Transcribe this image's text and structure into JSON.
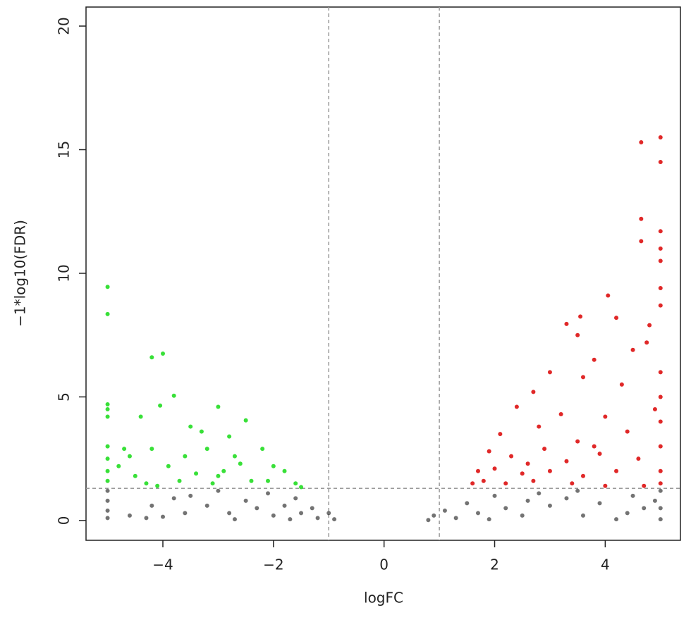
{
  "chart_data": {
    "type": "scatter",
    "xlabel": "logFC",
    "ylabel": "−1*log10(FDR)",
    "xlim": [
      -5.39,
      5.36
    ],
    "ylim": [
      -0.8,
      20.77
    ],
    "xticks": [
      {
        "value": -4,
        "label": "−4"
      },
      {
        "value": -2,
        "label": "−2"
      },
      0,
      2,
      4
    ],
    "yticks": [
      0,
      5,
      10,
      15,
      20
    ],
    "vlines": [
      -1,
      1
    ],
    "hlines": [
      1.3
    ],
    "series": [
      {
        "color": "#000000",
        "x": [
          -5,
          -5,
          -5,
          -5,
          -4.6,
          -4.3,
          -4.0,
          -3.8,
          -3.5,
          -3.2,
          -3,
          -2.8,
          -2.5,
          -2.3,
          -2.1,
          -2,
          -1.8,
          -1.6,
          -1.5,
          -1.3,
          -1.2,
          -1.0,
          -0.9,
          -4.2,
          -3.6,
          -2.7,
          -1.7,
          0.8,
          0.9,
          1.1,
          1.3,
          1.5,
          1.7,
          2,
          2.2,
          2.5,
          2.8,
          3.0,
          3.3,
          3.6,
          3.9,
          4.2,
          4.4,
          4.7,
          4.9,
          5,
          5,
          5,
          2.6,
          1.9,
          3.5,
          4.5
        ],
        "values": [
          1.2,
          0.8,
          0.4,
          0.1,
          0.2,
          0.1,
          0.15,
          0.9,
          1.0,
          0.6,
          1.2,
          0.3,
          0.8,
          0.5,
          1.1,
          0.2,
          0.6,
          0.9,
          0.3,
          0.5,
          0.1,
          0.3,
          0.05,
          0.6,
          0.3,
          0.05,
          0.05,
          0.02,
          0.2,
          0.4,
          0.1,
          0.7,
          0.3,
          1.0,
          0.5,
          0.2,
          1.1,
          0.6,
          0.9,
          0.2,
          0.7,
          0.05,
          0.3,
          0.5,
          0.8,
          1.2,
          0.5,
          0.05,
          0.8,
          0.05,
          1.2,
          1.0
        ]
      },
      {
        "color": "#22dd22",
        "x": [
          -5,
          -5,
          -5,
          -5,
          -5,
          -5,
          -5,
          -5,
          -5,
          -4.2,
          -4,
          -3.8,
          -4.05,
          -3,
          -2.5,
          -4.4,
          -3.5,
          -3.3,
          -2.8,
          -4.2,
          -3.6,
          -3.2,
          -2.2,
          -2.6,
          -3.9,
          -4.6,
          -4.8,
          -4.5,
          -4.3,
          -3.4,
          -2.9,
          -2,
          -1.8,
          -1.6,
          -2.4,
          -2.1,
          -3.1,
          -3.7,
          -4.1,
          -1.5,
          -2.7,
          -3.0,
          -4.7
        ],
        "values": [
          9.45,
          8.35,
          4.7,
          4.5,
          4.2,
          3,
          2.5,
          2,
          1.6,
          6.6,
          6.75,
          5.05,
          4.65,
          4.6,
          4.05,
          4.2,
          3.8,
          3.6,
          3.4,
          2.9,
          2.6,
          2.9,
          2.9,
          2.3,
          2.2,
          2.6,
          2.2,
          1.8,
          1.5,
          1.9,
          2.0,
          2.2,
          2.0,
          1.5,
          1.6,
          1.6,
          1.5,
          1.6,
          1.4,
          1.35,
          2.6,
          1.8,
          2.9
        ]
      },
      {
        "color": "#dd1111",
        "x": [
          4.65,
          5,
          5,
          4.65,
          4.65,
          5,
          5,
          5,
          5,
          5,
          4.05,
          4.2,
          3.55,
          3.3,
          3.5,
          4.8,
          4.75,
          4.5,
          3.8,
          3,
          2.7,
          3.6,
          4.3,
          2.4,
          3.2,
          4.0,
          4.9,
          2.1,
          2.8,
          3.5,
          4.4,
          1.9,
          2.3,
          2.9,
          3.3,
          3.9,
          4.6,
          1.7,
          2.0,
          2.5,
          3.0,
          3.6,
          4.2,
          1.6,
          2.2,
          2.7,
          3.4,
          4.0,
          4.7,
          5,
          5,
          5,
          5,
          5,
          5,
          1.8,
          2.6,
          3.8
        ],
        "values": [
          15.3,
          15.5,
          14.5,
          12.2,
          11.3,
          11.7,
          11,
          10.5,
          9.4,
          8.7,
          9.1,
          8.2,
          8.25,
          7.95,
          7.5,
          7.9,
          7.2,
          6.9,
          6.5,
          6,
          5.2,
          5.8,
          5.5,
          4.6,
          4.3,
          4.2,
          4.5,
          3.5,
          3.8,
          3.2,
          3.6,
          2.8,
          2.6,
          2.9,
          2.4,
          2.7,
          2.5,
          2.0,
          2.1,
          1.9,
          2.0,
          1.8,
          2.0,
          1.5,
          1.5,
          1.6,
          1.5,
          1.4,
          1.4,
          6,
          5,
          4,
          3,
          2,
          1.5,
          1.6,
          2.3,
          3.0
        ]
      }
    ]
  }
}
